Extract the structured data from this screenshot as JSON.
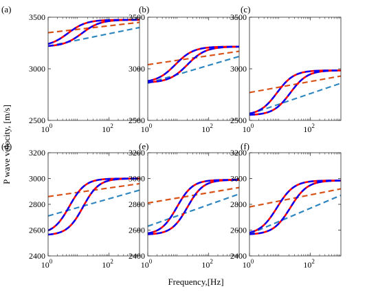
{
  "figure": {
    "ylabel": "P wave velocity, [m/s]",
    "xlabel": "Frequency,[Hz]"
  },
  "chart_data": [
    {
      "type": "line",
      "panel": "(a)",
      "log_x": true,
      "xlim": [
        1,
        1000
      ],
      "ylim": [
        2500,
        3500
      ],
      "xticks": [
        1,
        100
      ],
      "xtick_labels": [
        "10^0",
        "10^2"
      ],
      "yticks": [
        2500,
        3000,
        3500
      ],
      "grid": false,
      "series": [
        {
          "style": "solid",
          "color": "#ff0000",
          "v0": 3215,
          "vinf": 3475,
          "fc": 4.5,
          "w": 0.3
        },
        {
          "style": "solid",
          "color": "#ff0000",
          "v0": 3215,
          "vinf": 3475,
          "fc": 13,
          "w": 0.3
        },
        {
          "style": "dashed",
          "color": "#0000ff",
          "v0": 3215,
          "vinf": 3475,
          "fc": 4.5,
          "w": 0.3
        },
        {
          "style": "dashed",
          "color": "#0000ff",
          "v0": 3215,
          "vinf": 3475,
          "fc": 13,
          "w": 0.3
        },
        {
          "style": "dashed",
          "color": "#d95319",
          "x": [
            1,
            1000
          ],
          "y": [
            3350,
            3450
          ]
        },
        {
          "style": "dashed",
          "color": "#2e86c1",
          "x": [
            1,
            1000
          ],
          "y": [
            3220,
            3400
          ]
        }
      ]
    },
    {
      "type": "line",
      "panel": "(b)",
      "log_x": true,
      "xlim": [
        1,
        1000
      ],
      "ylim": [
        2500,
        3500
      ],
      "xticks": [
        1,
        100
      ],
      "xtick_labels": [
        "10^0",
        "10^2"
      ],
      "yticks": [
        2500,
        3000,
        3500
      ],
      "grid": false,
      "series": [
        {
          "style": "solid",
          "color": "#ff0000",
          "v0": 2865,
          "vinf": 3215,
          "fc": 8,
          "w": 0.3
        },
        {
          "style": "solid",
          "color": "#ff0000",
          "v0": 2865,
          "vinf": 3215,
          "fc": 20,
          "w": 0.3
        },
        {
          "style": "dashed",
          "color": "#0000ff",
          "v0": 2865,
          "vinf": 3215,
          "fc": 8,
          "w": 0.3
        },
        {
          "style": "dashed",
          "color": "#0000ff",
          "v0": 2865,
          "vinf": 3215,
          "fc": 20,
          "w": 0.3
        },
        {
          "style": "dashed",
          "color": "#d95319",
          "x": [
            1,
            1000
          ],
          "y": [
            3040,
            3170
          ]
        },
        {
          "style": "dashed",
          "color": "#2e86c1",
          "x": [
            1,
            1000
          ],
          "y": [
            2860,
            3120
          ]
        }
      ]
    },
    {
      "type": "line",
      "panel": "(c)",
      "log_x": true,
      "xlim": [
        1,
        1000
      ],
      "ylim": [
        2500,
        3500
      ],
      "xticks": [
        1,
        100
      ],
      "xtick_labels": [
        "10^0",
        "10^2"
      ],
      "yticks": [
        2500,
        3000,
        3500
      ],
      "grid": false,
      "series": [
        {
          "style": "solid",
          "color": "#ff0000",
          "v0": 2550,
          "vinf": 2985,
          "fc": 8,
          "w": 0.28
        },
        {
          "style": "solid",
          "color": "#ff0000",
          "v0": 2550,
          "vinf": 2985,
          "fc": 22,
          "w": 0.28
        },
        {
          "style": "dashed",
          "color": "#0000ff",
          "v0": 2550,
          "vinf": 2985,
          "fc": 8,
          "w": 0.28
        },
        {
          "style": "dashed",
          "color": "#0000ff",
          "v0": 2550,
          "vinf": 2985,
          "fc": 22,
          "w": 0.28
        },
        {
          "style": "dashed",
          "color": "#d95319",
          "x": [
            1,
            1000
          ],
          "y": [
            2770,
            2930
          ]
        },
        {
          "style": "dashed",
          "color": "#2e86c1",
          "x": [
            1,
            1000
          ],
          "y": [
            2560,
            2860
          ]
        }
      ]
    },
    {
      "type": "line",
      "panel": "(d)",
      "log_x": true,
      "xlim": [
        1,
        1000
      ],
      "ylim": [
        2400,
        3200
      ],
      "xticks": [
        1,
        100
      ],
      "xtick_labels": [
        "10^0",
        "10^2"
      ],
      "yticks": [
        2400,
        2600,
        2800,
        3000,
        3200
      ],
      "grid": false,
      "series": [
        {
          "style": "solid",
          "color": "#ff0000",
          "v0": 2570,
          "vinf": 3000,
          "fc": 5,
          "w": 0.26
        },
        {
          "style": "solid",
          "color": "#ff0000",
          "v0": 2560,
          "vinf": 3000,
          "fc": 14,
          "w": 0.26
        },
        {
          "style": "dashed",
          "color": "#0000ff",
          "v0": 2570,
          "vinf": 3000,
          "fc": 5,
          "w": 0.26
        },
        {
          "style": "dashed",
          "color": "#0000ff",
          "v0": 2560,
          "vinf": 3000,
          "fc": 14,
          "w": 0.26
        },
        {
          "style": "dashed",
          "color": "#d95319",
          "x": [
            1,
            1000
          ],
          "y": [
            2860,
            2960
          ]
        },
        {
          "style": "dashed",
          "color": "#2e86c1",
          "x": [
            1,
            1000
          ],
          "y": [
            2710,
            2910
          ]
        }
      ]
    },
    {
      "type": "line",
      "panel": "(e)",
      "log_x": true,
      "xlim": [
        1,
        1000
      ],
      "ylim": [
        2400,
        3200
      ],
      "xticks": [
        1,
        100
      ],
      "xtick_labels": [
        "10^0",
        "10^2"
      ],
      "yticks": [
        2400,
        2600,
        2800,
        3000,
        3200
      ],
      "grid": false,
      "series": [
        {
          "style": "solid",
          "color": "#ff0000",
          "v0": 2565,
          "vinf": 2990,
          "fc": 9,
          "w": 0.26
        },
        {
          "style": "solid",
          "color": "#ff0000",
          "v0": 2565,
          "vinf": 2990,
          "fc": 20,
          "w": 0.26
        },
        {
          "style": "dashed",
          "color": "#0000ff",
          "v0": 2565,
          "vinf": 2990,
          "fc": 9,
          "w": 0.26
        },
        {
          "style": "dashed",
          "color": "#0000ff",
          "v0": 2565,
          "vinf": 2990,
          "fc": 20,
          "w": 0.26
        },
        {
          "style": "dashed",
          "color": "#d95319",
          "x": [
            1,
            1000
          ],
          "y": [
            2810,
            2930
          ]
        },
        {
          "style": "dashed",
          "color": "#2e86c1",
          "x": [
            1,
            1000
          ],
          "y": [
            2630,
            2880
          ]
        }
      ]
    },
    {
      "type": "line",
      "panel": "(f)",
      "log_x": true,
      "xlim": [
        1,
        1000
      ],
      "ylim": [
        2400,
        3200
      ],
      "xticks": [
        1,
        100
      ],
      "xtick_labels": [
        "10^0",
        "10^2"
      ],
      "yticks": [
        2400,
        2600,
        2800,
        3000,
        3200
      ],
      "grid": false,
      "series": [
        {
          "style": "solid",
          "color": "#ff0000",
          "v0": 2565,
          "vinf": 2985,
          "fc": 8,
          "w": 0.28
        },
        {
          "style": "solid",
          "color": "#ff0000",
          "v0": 2565,
          "vinf": 2985,
          "fc": 22,
          "w": 0.28
        },
        {
          "style": "dashed",
          "color": "#0000ff",
          "v0": 2565,
          "vinf": 2985,
          "fc": 8,
          "w": 0.28
        },
        {
          "style": "dashed",
          "color": "#0000ff",
          "v0": 2565,
          "vinf": 2985,
          "fc": 22,
          "w": 0.28
        },
        {
          "style": "dashed",
          "color": "#d95319",
          "x": [
            1,
            1000
          ],
          "y": [
            2780,
            2920
          ]
        },
        {
          "style": "dashed",
          "color": "#2e86c1",
          "x": [
            1,
            1000
          ],
          "y": [
            2570,
            2870
          ]
        }
      ]
    }
  ]
}
